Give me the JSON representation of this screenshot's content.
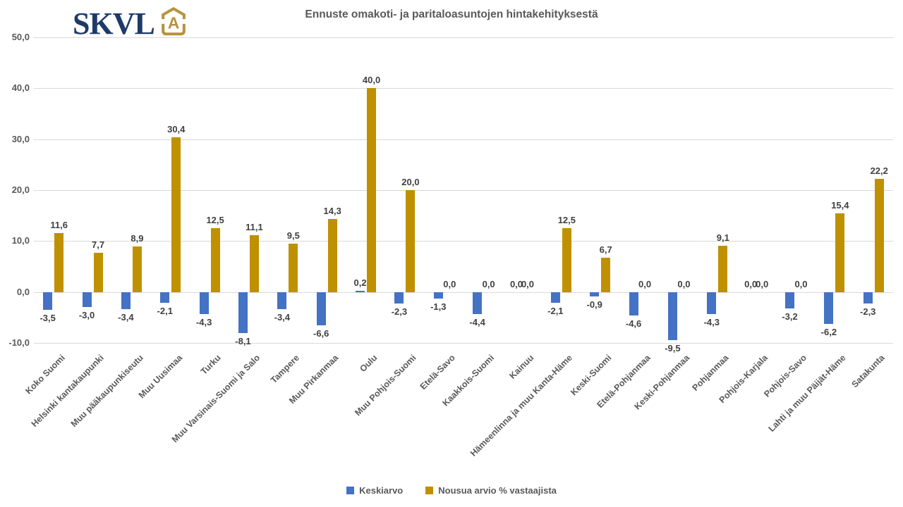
{
  "logo": {
    "text": "SKVL",
    "house_letter": "A",
    "navy_color": "#1e3a68",
    "gold_color": "#b7923f"
  },
  "header": {
    "title": "Ennuste omakoti- ja paritaloasuntojen hintakehityksestä"
  },
  "legend": [
    {
      "label": "Keskiarvo",
      "color": "#4472c4"
    },
    {
      "label": "Nousua arvio % vastaajista",
      "color": "#bf9000"
    }
  ],
  "chart_data": {
    "type": "bar",
    "title": "Ennuste omakoti- ja paritaloasuntojen hintakehityksestä",
    "xlabel": "",
    "ylabel": "",
    "ylim": [
      -10,
      50
    ],
    "y_tick_step": 10,
    "y_ticks": [
      "50,0",
      "40,0",
      "30,0",
      "20,0",
      "10,0",
      "0,0",
      "-10,0"
    ],
    "grid": true,
    "legend_position": "bottom",
    "decimal_separator": ",",
    "categories": [
      "Koko Suomi",
      "Helsinki kantakaupunki",
      "Muu pääkaupunkiseutu",
      "Muu Uusimaa",
      "Turku",
      "Muu Varsinais-Suomi ja Salo",
      "Tampere",
      "Muu Pirkanmaa",
      "Oulu",
      "Muu Pohjois-Suomi",
      "Etelä-Savo",
      "Kaakkois-Suomi",
      "Kainuu",
      "Hämeenlinna ja muu Kanta-Häme",
      "Keski-Suomi",
      "Etelä-Pohjanmaa",
      "Keski-Pohjanmaa",
      "Pohjanmaa",
      "Pohjois-Karjala",
      "Pohjois-Savo",
      "Lahti ja muu Päijät-Häme",
      "Satakunta"
    ],
    "series": [
      {
        "name": "Keskiarvo",
        "color": "#4472c4",
        "values": [
          -3.5,
          -3.0,
          -3.4,
          -2.1,
          -4.3,
          -8.1,
          -3.4,
          -6.6,
          0.2,
          -2.3,
          -1.3,
          -4.4,
          0.0,
          -2.1,
          -0.9,
          -4.6,
          -9.5,
          -4.3,
          0.0,
          -3.2,
          -6.2,
          -2.3
        ]
      },
      {
        "name": "Nousua arvio % vastaajista",
        "color": "#bf9000",
        "values": [
          11.6,
          7.7,
          8.9,
          30.4,
          12.5,
          11.1,
          9.5,
          14.3,
          40.0,
          20.0,
          0.0,
          0.0,
          0.0,
          12.5,
          6.7,
          0.0,
          0.0,
          9.1,
          0.0,
          0.0,
          15.4,
          22.2
        ]
      }
    ]
  }
}
